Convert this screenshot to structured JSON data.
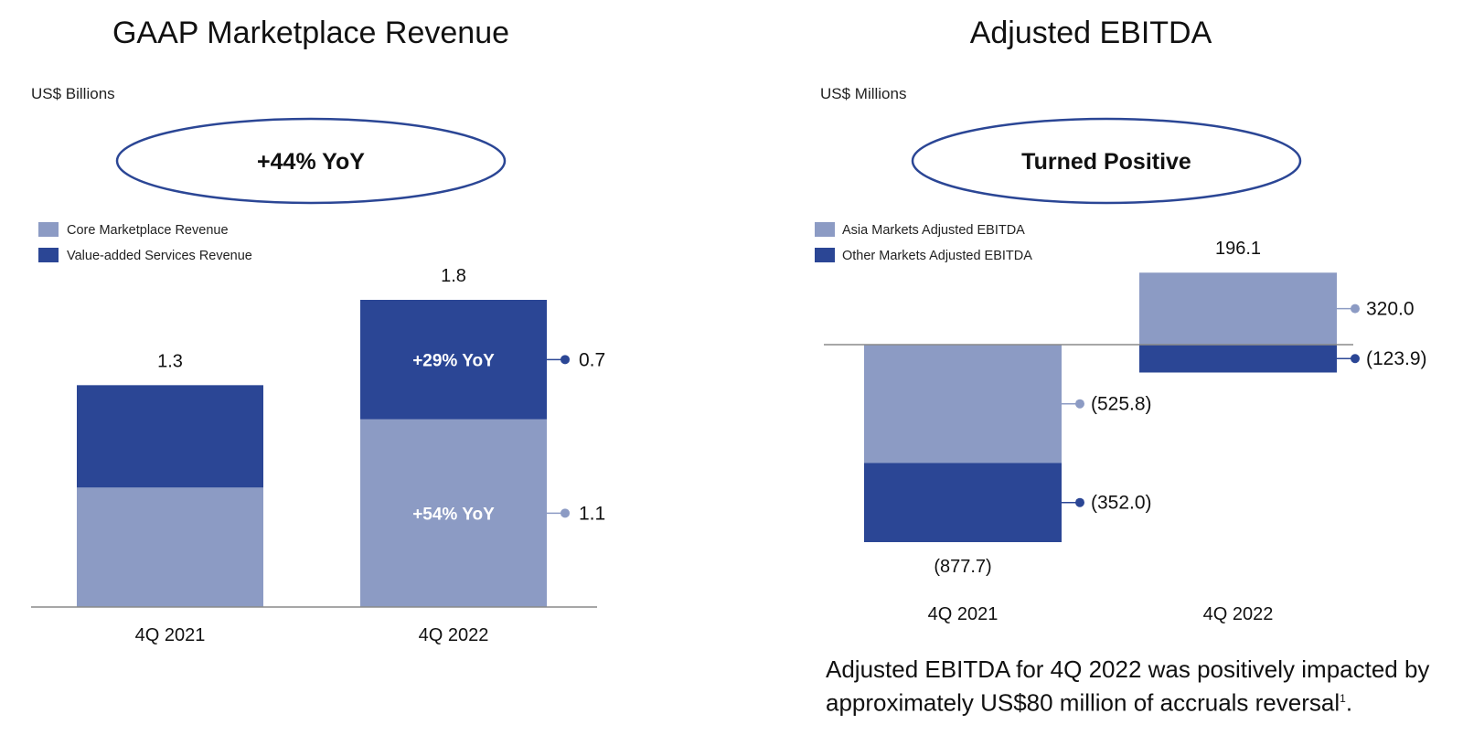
{
  "colors": {
    "light": "#8c9bc4",
    "dark": "#2b4695",
    "axis": "#8a8a8a",
    "ellipse": "#2b4695"
  },
  "chart_data": [
    {
      "type": "bar",
      "stacked": true,
      "title": "GAAP Marketplace Revenue",
      "unit_label": "US$ Billions",
      "badge": "+44% YoY",
      "categories": [
        "4Q 2021",
        "4Q 2022"
      ],
      "series": [
        {
          "name": "Core Marketplace Revenue",
          "values": [
            0.7,
            1.1
          ],
          "color": "#8c9bc4"
        },
        {
          "name": "Value-added Services Revenue",
          "values": [
            0.6,
            0.7
          ],
          "color": "#2b4695"
        }
      ],
      "totals": [
        "1.3",
        "1.8"
      ],
      "segment_labels": {
        "Core Marketplace Revenue": [
          "",
          "+54% YoY"
        ],
        "Value-added Services Revenue": [
          "",
          "+29% YoY"
        ]
      },
      "callouts": {
        "Core Marketplace Revenue": "1.1",
        "Value-added Services Revenue": "0.7"
      },
      "ylim": [
        0,
        1.8
      ]
    },
    {
      "type": "bar",
      "stacked": true,
      "title": "Adjusted EBITDA",
      "unit_label": "US$ Millions",
      "badge": "Turned Positive",
      "categories": [
        "4Q 2021",
        "4Q 2022"
      ],
      "series": [
        {
          "name": "Asia Markets Adjusted EBITDA",
          "values": [
            -525.8,
            320.0
          ],
          "color": "#8c9bc4"
        },
        {
          "name": "Other Markets Adjusted EBITDA",
          "values": [
            -352.0,
            -123.9
          ],
          "color": "#2b4695"
        }
      ],
      "totals": [
        "(877.7)",
        "196.1"
      ],
      "callouts": {
        "Asia Markets Adjusted EBITDA": [
          "(525.8)",
          "320.0"
        ],
        "Other Markets Adjusted EBITDA": [
          "(352.0)",
          "(123.9)"
        ]
      },
      "ylim": [
        -877.7,
        320.0
      ]
    }
  ],
  "footnote": {
    "text": "Adjusted EBITDA for 4Q 2022 was positively impacted by approximately US$80 million of accruals reversal",
    "superscript": "1",
    "end": "."
  }
}
